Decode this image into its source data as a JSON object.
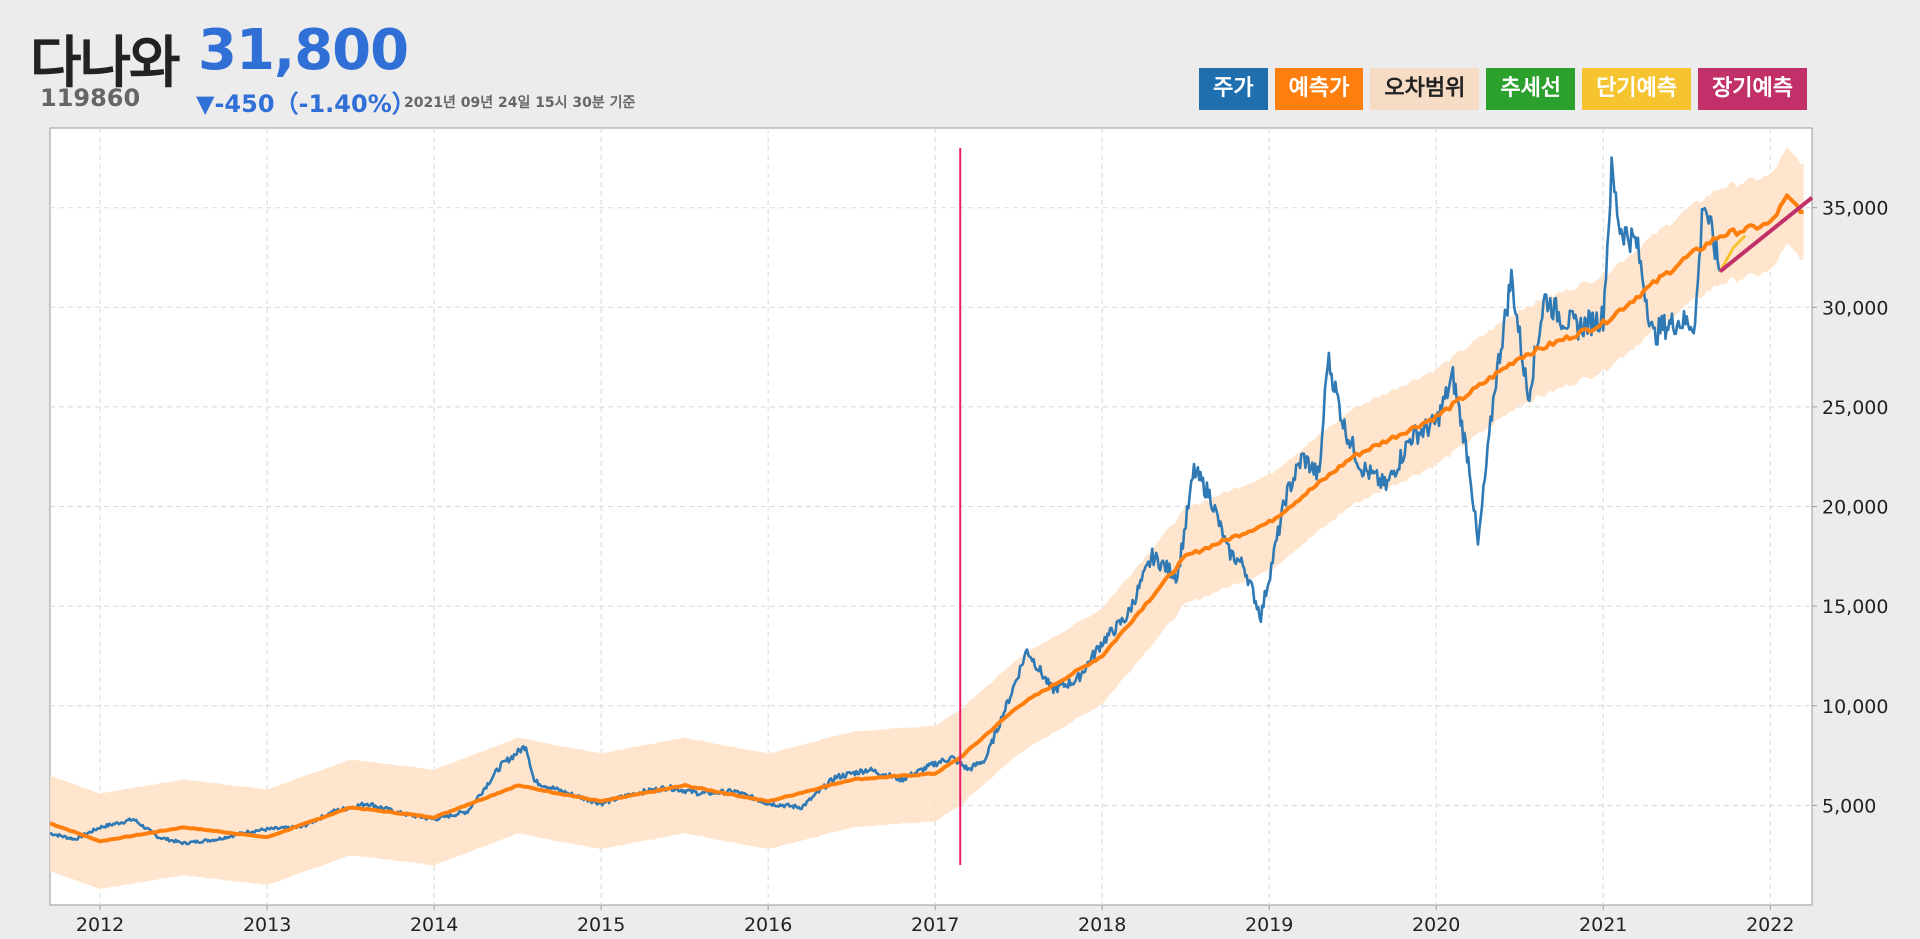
{
  "stock": {
    "name": "다나와",
    "code": "119860",
    "price": "31,800",
    "change": "▼-450（-1.40%）",
    "timestamp": "2021년 09년 24일 15시 30분 기준"
  },
  "legend": [
    {
      "key": "price",
      "label": "주가",
      "bg": "#1f6fae",
      "fg": "#ffffff"
    },
    {
      "key": "predicted",
      "label": "예측가",
      "bg": "#ff7f0e",
      "fg": "#ffffff"
    },
    {
      "key": "error_band",
      "label": "오차범위",
      "bg": "#f6dcc4",
      "fg": "#222222"
    },
    {
      "key": "trend",
      "label": "추세선",
      "bg": "#2ca02c",
      "fg": "#ffffff"
    },
    {
      "key": "short_term",
      "label": "단기예측",
      "bg": "#f6c431",
      "fg": "#ffffff"
    },
    {
      "key": "long_term",
      "label": "장기예측",
      "bg": "#c2306a",
      "fg": "#ffffff"
    }
  ],
  "colors": {
    "price": "#2f79b5",
    "predicted": "#ff7f0e",
    "band": "#ffe0c4",
    "short_term": "#f6c431",
    "long_term": "#c2306a",
    "marker": "#e8206a",
    "grid": "#d8d8d8"
  },
  "chart_data": {
    "type": "line",
    "title": "",
    "x_ticks": [
      2012,
      2013,
      2014,
      2015,
      2016,
      2017,
      2018,
      2019,
      2020,
      2021,
      2022
    ],
    "y_ticks": [
      5000,
      10000,
      15000,
      20000,
      25000,
      30000,
      35000
    ],
    "y_tick_labels": [
      "5,000",
      "10,000",
      "15,000",
      "20,000",
      "25,000",
      "30,000",
      "35,000"
    ],
    "xlim": [
      2011.7,
      2022.25
    ],
    "ylim": [
      0,
      39000
    ],
    "marker_x": 2017.15,
    "series": [
      {
        "name": "주가",
        "x": [
          2011.7,
          2011.85,
          2012.0,
          2012.2,
          2012.35,
          2012.5,
          2012.7,
          2012.9,
          2013.0,
          2013.2,
          2013.4,
          2013.6,
          2013.8,
          2014.0,
          2014.2,
          2014.4,
          2014.55,
          2014.6,
          2014.8,
          2015.0,
          2015.2,
          2015.4,
          2015.6,
          2015.8,
          2016.0,
          2016.2,
          2016.4,
          2016.6,
          2016.8,
          2017.0,
          2017.1,
          2017.2,
          2017.3,
          2017.45,
          2017.55,
          2017.7,
          2017.85,
          2018.0,
          2018.15,
          2018.3,
          2018.45,
          2018.55,
          2018.65,
          2018.75,
          2018.85,
          2018.95,
          2019.1,
          2019.2,
          2019.3,
          2019.35,
          2019.45,
          2019.55,
          2019.7,
          2019.85,
          2020.0,
          2020.1,
          2020.2,
          2020.25,
          2020.35,
          2020.45,
          2020.55,
          2020.65,
          2020.75,
          2020.85,
          2021.0,
          2021.05,
          2021.1,
          2021.2,
          2021.3,
          2021.35,
          2021.45,
          2021.55,
          2021.6,
          2021.7
        ],
        "values": [
          3600,
          3300,
          3900,
          4300,
          3400,
          3100,
          3300,
          3700,
          3800,
          3900,
          4700,
          5100,
          4600,
          4300,
          4700,
          7000,
          8000,
          6200,
          5600,
          5100,
          5600,
          5900,
          5600,
          5700,
          5100,
          4900,
          6400,
          6800,
          6300,
          7100,
          7400,
          6800,
          7300,
          10500,
          12800,
          10800,
          11300,
          13200,
          14500,
          17500,
          16500,
          21800,
          20500,
          17800,
          17000,
          14500,
          20500,
          22500,
          21500,
          27500,
          24000,
          22000,
          21000,
          23500,
          24200,
          26500,
          22000,
          18000,
          26000,
          31500,
          25500,
          30500,
          29500,
          29000,
          29500,
          36800,
          34000,
          33200,
          28500,
          29000,
          29300,
          29200,
          35500,
          31800
        ]
      },
      {
        "name": "예측가",
        "x": [
          2011.7,
          2012.0,
          2012.5,
          2013.0,
          2013.5,
          2014.0,
          2014.5,
          2015.0,
          2015.5,
          2016.0,
          2016.5,
          2017.0,
          2017.15,
          2017.5,
          2018.0,
          2018.5,
          2019.0,
          2019.5,
          2020.0,
          2020.5,
          2021.0,
          2021.5,
          2021.7,
          2022.0,
          2022.1,
          2022.2
        ],
        "values": [
          4100,
          3200,
          3900,
          3400,
          4900,
          4400,
          6000,
          5200,
          6000,
          5200,
          6300,
          6600,
          7400,
          10000,
          12500,
          17500,
          19200,
          22500,
          24500,
          27500,
          29200,
          32500,
          33600,
          34200,
          35500,
          34800
        ]
      },
      {
        "name": "장기예측",
        "x": [
          2021.7,
          2022.25
        ],
        "values": [
          31800,
          35500
        ]
      },
      {
        "name": "단기예측",
        "x": [
          2021.7,
          2021.78,
          2021.85
        ],
        "values": [
          31800,
          33000,
          33600
        ]
      }
    ],
    "band_width": 2400
  }
}
